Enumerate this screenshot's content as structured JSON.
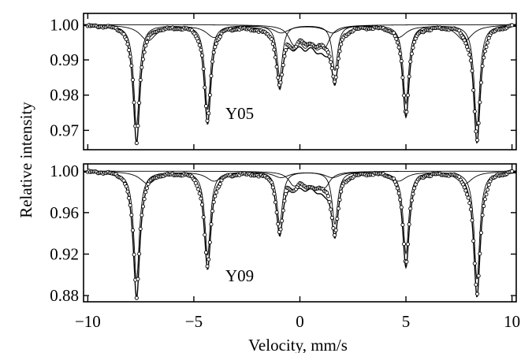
{
  "chart_data": {
    "type": "line",
    "ylabel": "Relative intensity",
    "xlabel": "Velocity, mm/s",
    "xlim": [
      -10.2,
      10.2
    ],
    "x_ticks": [
      -10,
      -5,
      0,
      5,
      10
    ],
    "x_tick_labels": [
      "−10",
      "−5",
      "0",
      "5",
      "10"
    ],
    "sextet_lines": [
      -7.7,
      -4.35,
      -0.95,
      1.65,
      5.0,
      8.35
    ],
    "doublet_lines": [
      -0.3,
      0.25,
      0.8,
      1.2
    ],
    "panels": [
      {
        "label": "Y05",
        "ylim": [
          0.9645,
          1.0032
        ],
        "y_ticks": [
          0.97,
          0.98,
          0.99,
          1.0
        ],
        "y_tick_labels": [
          "0.97",
          "0.98",
          "0.99",
          "1.00"
        ],
        "series": [
          {
            "role": "measured points",
            "x": [
              -10.0,
              -9.0,
              -8.3,
              -7.9,
              -7.7,
              -7.5,
              -7.1,
              -6.5,
              -5.5,
              -5.0,
              -4.6,
              -4.35,
              -4.1,
              -3.6,
              -3.0,
              -2.0,
              -1.3,
              -0.95,
              -0.6,
              -0.3,
              0.0,
              0.3,
              0.55,
              0.8,
              1.05,
              1.3,
              1.65,
              2.0,
              2.6,
              3.5,
              4.4,
              4.8,
              5.0,
              5.2,
              5.6,
              6.5,
              7.5,
              8.1,
              8.35,
              8.6,
              9.0,
              10.0
            ],
            "y": [
              0.9995,
              0.9994,
              0.9985,
              0.989,
              0.9665,
              0.988,
              0.997,
              0.9985,
              0.999,
              0.9985,
              0.993,
              0.972,
              0.9935,
              0.998,
              0.9985,
              0.9978,
              0.996,
              0.983,
              0.9955,
              0.994,
              0.9975,
              0.9965,
              0.996,
              0.996,
              0.9968,
              0.995,
              0.985,
              0.996,
              0.9985,
              0.999,
              0.9982,
              0.991,
              0.974,
              0.9915,
              0.9978,
              0.9988,
              0.9985,
              0.989,
              0.9665,
              0.989,
              0.9975,
              0.9996
            ]
          }
        ]
      },
      {
        "label": "Y09",
        "ylim": [
          0.874,
          1.007
        ],
        "y_ticks": [
          0.88,
          0.92,
          0.96,
          1.0
        ],
        "y_tick_labels": [
          "0.88",
          "0.92",
          "0.96",
          "1.00"
        ],
        "series": [
          {
            "role": "measured points",
            "x": [
              -10.0,
              -9.0,
              -8.3,
              -7.9,
              -7.7,
              -7.5,
              -7.1,
              -6.5,
              -5.5,
              -5.0,
              -4.6,
              -4.35,
              -4.1,
              -3.6,
              -3.0,
              -2.0,
              -1.3,
              -0.95,
              -0.6,
              -0.3,
              0.0,
              0.3,
              0.55,
              0.8,
              1.05,
              1.3,
              1.65,
              2.0,
              2.6,
              3.5,
              4.4,
              4.8,
              5.0,
              5.2,
              5.6,
              6.5,
              7.5,
              8.1,
              8.35,
              8.6,
              9.0,
              10.0
            ],
            "y": [
              0.9995,
              0.999,
              0.996,
              0.96,
              0.878,
              0.96,
              0.992,
              0.996,
              0.9975,
              0.9955,
              0.97,
              0.906,
              0.97,
              0.994,
              0.9965,
              0.996,
              0.993,
              0.941,
              0.989,
              0.982,
              0.993,
              0.988,
              0.987,
              0.989,
              0.988,
              0.987,
              0.941,
              0.988,
              0.995,
              0.9975,
              0.996,
              0.972,
              0.908,
              0.972,
              0.995,
              0.997,
              0.996,
              0.96,
              0.879,
              0.96,
              0.993,
              0.9995
            ]
          }
        ]
      }
    ]
  }
}
